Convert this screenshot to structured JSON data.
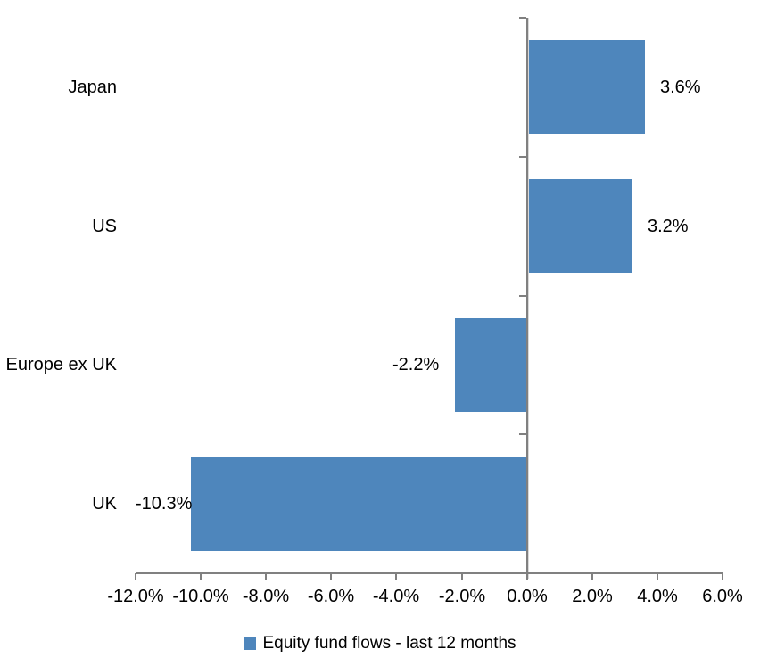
{
  "chart_data": {
    "type": "bar",
    "orientation": "horizontal",
    "title": "",
    "xlabel": "",
    "ylabel": "",
    "categories": [
      "Japan",
      "US",
      "Europe ex UK",
      "UK"
    ],
    "series": [
      {
        "name": "Equity fund flows - last 12 months",
        "values": [
          3.6,
          3.2,
          -2.2,
          -10.3
        ],
        "data_labels": [
          "3.6%",
          "3.2%",
          "-2.2%",
          "-10.3%"
        ],
        "color": "#4E86BC"
      }
    ],
    "xlim": [
      -12,
      6
    ],
    "x_ticks": [
      {
        "value": -12,
        "label": "-12.0%"
      },
      {
        "value": -10,
        "label": "-10.0%"
      },
      {
        "value": -8,
        "label": "-8.0%"
      },
      {
        "value": -6,
        "label": "-6.0%"
      },
      {
        "value": -4,
        "label": "-4.0%"
      },
      {
        "value": -2,
        "label": "-2.0%"
      },
      {
        "value": 0,
        "label": "0.0%"
      },
      {
        "value": 2,
        "label": "2.0%"
      },
      {
        "value": 4,
        "label": "4.0%"
      },
      {
        "value": 6,
        "label": "6.0%"
      }
    ],
    "grid": false,
    "legend": {
      "position": "bottom",
      "entries": [
        {
          "label": "Equity fund flows - last 12 months",
          "color": "#4E86BC"
        }
      ]
    },
    "colors": {
      "bar": "#4E86BC",
      "axis": "#808080",
      "axis_shadow": "#d9d9d9",
      "text": "#000000",
      "background": "#ffffff"
    }
  }
}
